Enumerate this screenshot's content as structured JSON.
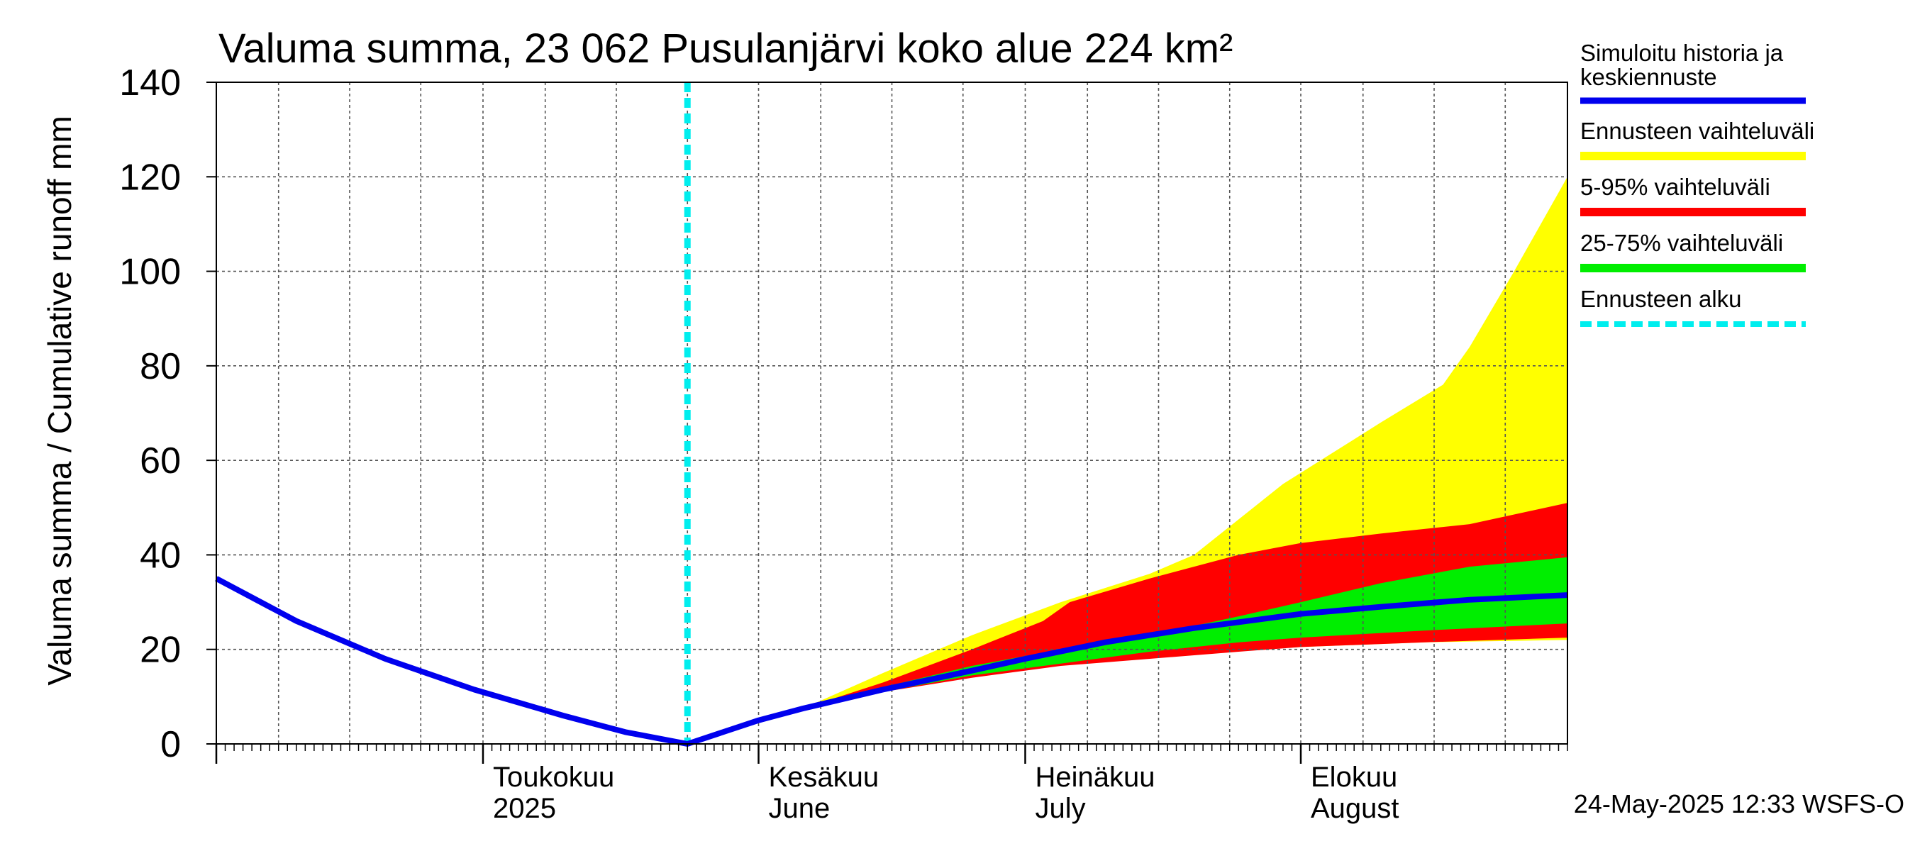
{
  "chart_data": {
    "type": "area",
    "title": "Valuma summa, 23 062 Pusulanjärvi koko alue 224 km²",
    "ylabel": "Valuma summa / Cumulative runoff    mm",
    "ylim": [
      0,
      140
    ],
    "y_ticks": [
      0,
      20,
      40,
      60,
      80,
      100,
      120,
      140
    ],
    "xlim": [
      "2025-04-01",
      "2025-08-31"
    ],
    "grid": true,
    "legend_position": "right",
    "month_labels": [
      {
        "date": "2025-05-01",
        "line1": "Toukokuu",
        "line2": "2025"
      },
      {
        "date": "2025-06-01",
        "line1": "Kesäkuu",
        "line2": "June"
      },
      {
        "date": "2025-07-01",
        "line1": "Heinäkuu",
        "line2": "July"
      },
      {
        "date": "2025-08-01",
        "line1": "Elokuu",
        "line2": "August"
      }
    ],
    "forecast_start": "2025-05-24",
    "series": [
      {
        "name": "Simuloitu historia ja keskiennuste",
        "color": "#0000ee",
        "points": [
          [
            "2025-04-01",
            35
          ],
          [
            "2025-04-10",
            26
          ],
          [
            "2025-04-20",
            18
          ],
          [
            "2025-04-30",
            11.5
          ],
          [
            "2025-05-10",
            6
          ],
          [
            "2025-05-17",
            2.5
          ],
          [
            "2025-05-24",
            0
          ],
          [
            "2025-06-01",
            5
          ],
          [
            "2025-06-06",
            7.5
          ],
          [
            "2025-06-15",
            11.5
          ],
          [
            "2025-06-25",
            15.5
          ],
          [
            "2025-07-01",
            18
          ],
          [
            "2025-07-10",
            21.5
          ],
          [
            "2025-07-20",
            24.5
          ],
          [
            "2025-07-26",
            26
          ],
          [
            "2025-08-01",
            27.5
          ],
          [
            "2025-08-10",
            29
          ],
          [
            "2025-08-20",
            30.5
          ],
          [
            "2025-08-31",
            31.5
          ]
        ]
      },
      {
        "name": "Ennusteen vaihteluväli",
        "color": "#ffff00",
        "lower": [
          [
            "2025-05-24",
            0
          ],
          [
            "2025-06-06",
            7.5
          ],
          [
            "2025-06-10",
            9
          ],
          [
            "2025-06-20",
            13
          ],
          [
            "2025-07-01",
            16
          ],
          [
            "2025-07-15",
            18.5
          ],
          [
            "2025-08-01",
            20.5
          ],
          [
            "2025-08-15",
            21.5
          ],
          [
            "2025-08-31",
            22
          ]
        ],
        "upper": [
          [
            "2025-05-24",
            0
          ],
          [
            "2025-06-06",
            7.5
          ],
          [
            "2025-06-15",
            15
          ],
          [
            "2025-06-25",
            23
          ],
          [
            "2025-07-05",
            30
          ],
          [
            "2025-07-15",
            36
          ],
          [
            "2025-07-20",
            40
          ],
          [
            "2025-07-30",
            55
          ],
          [
            "2025-08-10",
            68
          ],
          [
            "2025-08-17",
            76
          ],
          [
            "2025-08-20",
            84
          ],
          [
            "2025-08-25",
            100
          ],
          [
            "2025-08-31",
            120
          ]
        ]
      },
      {
        "name": "5-95% vaihteluväli",
        "color": "#ff0000",
        "lower": [
          [
            "2025-05-24",
            0
          ],
          [
            "2025-06-06",
            7.5
          ],
          [
            "2025-06-15",
            11
          ],
          [
            "2025-06-25",
            14
          ],
          [
            "2025-07-05",
            16.5
          ],
          [
            "2025-07-15",
            18
          ],
          [
            "2025-07-25",
            19.5
          ],
          [
            "2025-08-01",
            20.5
          ],
          [
            "2025-08-15",
            21.5
          ],
          [
            "2025-08-31",
            22.5
          ]
        ],
        "upper": [
          [
            "2025-05-24",
            0
          ],
          [
            "2025-06-06",
            7.5
          ],
          [
            "2025-06-15",
            13
          ],
          [
            "2025-06-25",
            20
          ],
          [
            "2025-07-03",
            26
          ],
          [
            "2025-07-06",
            30
          ],
          [
            "2025-07-15",
            35
          ],
          [
            "2025-07-25",
            40
          ],
          [
            "2025-08-01",
            42.5
          ],
          [
            "2025-08-10",
            44.5
          ],
          [
            "2025-08-20",
            46.5
          ],
          [
            "2025-08-31",
            51
          ]
        ]
      },
      {
        "name": "25-75% vaihteluväli",
        "color": "#00ee00",
        "lower": [
          [
            "2025-05-24",
            0
          ],
          [
            "2025-06-06",
            7.5
          ],
          [
            "2025-06-15",
            11
          ],
          [
            "2025-06-25",
            14.5
          ],
          [
            "2025-07-05",
            17
          ],
          [
            "2025-07-15",
            19.5
          ],
          [
            "2025-07-25",
            21.5
          ],
          [
            "2025-08-01",
            22.5
          ],
          [
            "2025-08-15",
            24
          ],
          [
            "2025-08-31",
            25.5
          ]
        ],
        "upper": [
          [
            "2025-05-24",
            0
          ],
          [
            "2025-06-06",
            7.5
          ],
          [
            "2025-06-15",
            12
          ],
          [
            "2025-06-25",
            16.5
          ],
          [
            "2025-07-05",
            20
          ],
          [
            "2025-07-15",
            23
          ],
          [
            "2025-07-25",
            27
          ],
          [
            "2025-08-01",
            30
          ],
          [
            "2025-08-10",
            34
          ],
          [
            "2025-08-20",
            37.5
          ],
          [
            "2025-08-31",
            39.5
          ]
        ]
      },
      {
        "name": "Ennusteen alku",
        "color": "#00eeee",
        "date": "2025-05-24"
      }
    ]
  },
  "timestamp": "24-May-2025 12:33 WSFS-O"
}
